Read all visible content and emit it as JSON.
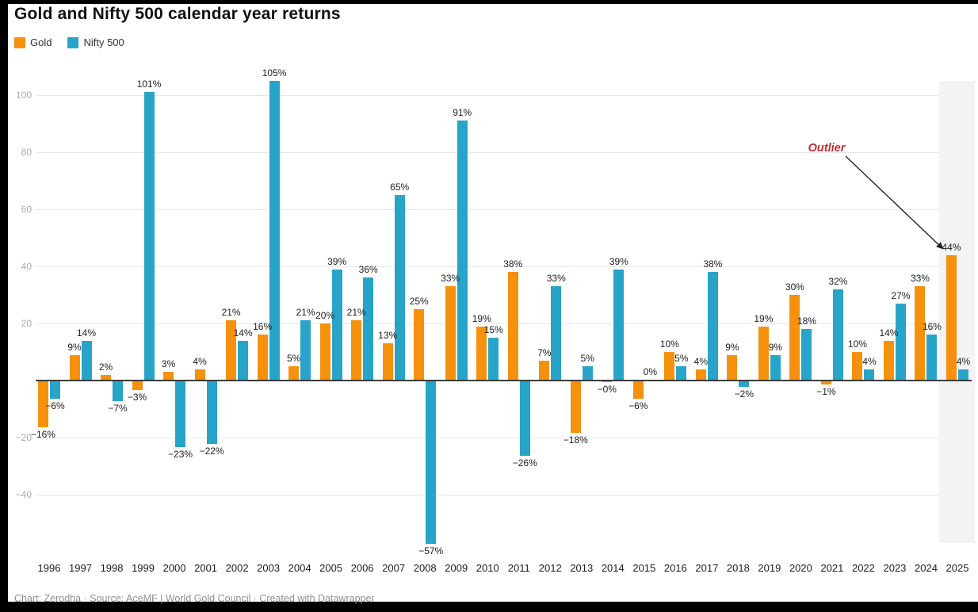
{
  "chart_data": {
    "type": "bar",
    "title": "Gold and Nifty 500 calendar year returns",
    "categories": [
      "1996",
      "1997",
      "1998",
      "1999",
      "2000",
      "2001",
      "2002",
      "2003",
      "2004",
      "2005",
      "2006",
      "2007",
      "2008",
      "2009",
      "2010",
      "2011",
      "2012",
      "2013",
      "2014",
      "2015",
      "2016",
      "2017",
      "2018",
      "2019",
      "2020",
      "2021",
      "2022",
      "2023",
      "2024",
      "2025"
    ],
    "series": [
      {
        "name": "Gold",
        "color": "#F5910D",
        "values": [
          -16,
          9,
          2,
          -3,
          3,
          4,
          21,
          16,
          5,
          20,
          21,
          13,
          25,
          33,
          19,
          38,
          7,
          -18,
          -0.4,
          -6,
          10,
          4,
          9,
          19,
          30,
          -1,
          10,
          14,
          33,
          44
        ],
        "labels": [
          "−16%",
          "9%",
          "2%",
          "−3%",
          "3%",
          "4%",
          "21%",
          "16%",
          "5%",
          "20%",
          "21%",
          "13%",
          "25%",
          "33%",
          "19%",
          "38%",
          "7%",
          "−18%",
          "−0%",
          "−6%",
          "10%",
          "4%",
          "9%",
          "19%",
          "30%",
          "−1%",
          "10%",
          "14%",
          "33%",
          "44%"
        ]
      },
      {
        "name": "Nifty 500",
        "color": "#29A4C9",
        "values": [
          -6,
          14,
          -7,
          101,
          -23,
          -22,
          14,
          105,
          21,
          39,
          36,
          65,
          -57,
          91,
          15,
          -26,
          33,
          5,
          39,
          0.25,
          5,
          38,
          -2,
          9,
          18,
          32,
          4,
          27,
          16,
          4
        ],
        "labels": [
          "−6%",
          "14%",
          "−7%",
          "101%",
          "−23%",
          "−22%",
          "14%",
          "105%",
          "21%",
          "39%",
          "36%",
          "65%",
          "−57%",
          "91%",
          "15%",
          "−26%",
          "33%",
          "5%",
          "39%",
          "0%",
          "5%",
          "38%",
          "−2%",
          "9%",
          "18%",
          "32%",
          "4%",
          "27%",
          "16%",
          "4%"
        ]
      }
    ],
    "y_ticks": [
      "100",
      "80",
      "60",
      "40",
      "20",
      "−20",
      "−40"
    ],
    "y_tick_values": [
      100,
      80,
      60,
      40,
      20,
      -20,
      -40
    ],
    "ylim": [
      -60,
      110
    ],
    "grid": true,
    "legend_position": "top-left",
    "annotation": {
      "text": "Outlier",
      "color": "#C53030",
      "target_year": "2025",
      "target_series": "Gold"
    },
    "highlight_band_year": "2025",
    "footer": "Chart: Zerodha · Source: AceMF | World Gold Council · Created with Datawrapper"
  }
}
